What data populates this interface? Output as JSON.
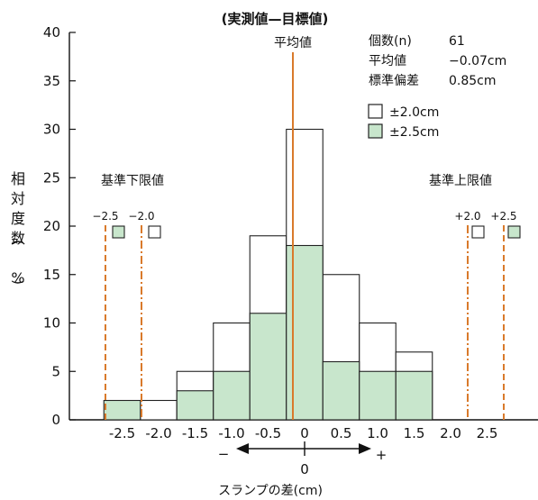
{
  "chart_data": {
    "type": "bar",
    "title": "(実測値—目標値)",
    "xlabel": "スランプの差(cm)",
    "ylabel": "相対度数(%)",
    "ylim": [
      0,
      40
    ],
    "yticks": [
      "0",
      "5",
      "10",
      "15",
      "20",
      "25",
      "30",
      "35",
      "40"
    ],
    "x_tick_labels": [
      "-2.5",
      "-2.0",
      "-1.5",
      "-1.0",
      "-0.5",
      "0",
      "0.5",
      "1.0",
      "1.5",
      "2.0",
      "2.5"
    ],
    "categories": [
      "-2.5",
      "-2.0",
      "-1.5",
      "-1.0",
      "-0.5",
      "0",
      "0.5",
      "1.0",
      "1.5",
      "2.0",
      "2.5"
    ],
    "series": [
      {
        "name": "±2.0cm",
        "values": [
          0,
          2,
          5,
          10,
          19,
          30,
          15,
          10,
          7,
          0,
          0
        ],
        "color": "#ffffff"
      },
      {
        "name": "±2.5cm",
        "values": [
          2,
          0,
          3,
          5,
          11,
          18,
          6,
          5,
          5,
          0,
          0
        ],
        "color": "#c8e6cc"
      }
    ],
    "mean_line": {
      "label": "平均値",
      "value": -0.07,
      "color": "#d97a2b"
    },
    "limits": {
      "lower_title": "基準下限値",
      "upper_title": "基準上限値",
      "lines": [
        {
          "label": "−2.5",
          "value": -2.5,
          "style": "green"
        },
        {
          "label": "−2.0",
          "value": -2.0,
          "style": "white"
        },
        {
          "label": "+2.0",
          "value": 2.0,
          "style": "white"
        },
        {
          "label": "+2.5",
          "value": 2.5,
          "style": "green"
        }
      ]
    },
    "stats": [
      {
        "label": "個数(n)",
        "value": "61"
      },
      {
        "label": "平均値",
        "value": "−0.07cm"
      },
      {
        "label": "標準偏差",
        "value": "0.85cm"
      }
    ],
    "direction": {
      "minus": "−",
      "zero": "0",
      "plus": "+"
    },
    "accent_color": "#d97a2b",
    "green_fill": "#c8e6cc"
  }
}
